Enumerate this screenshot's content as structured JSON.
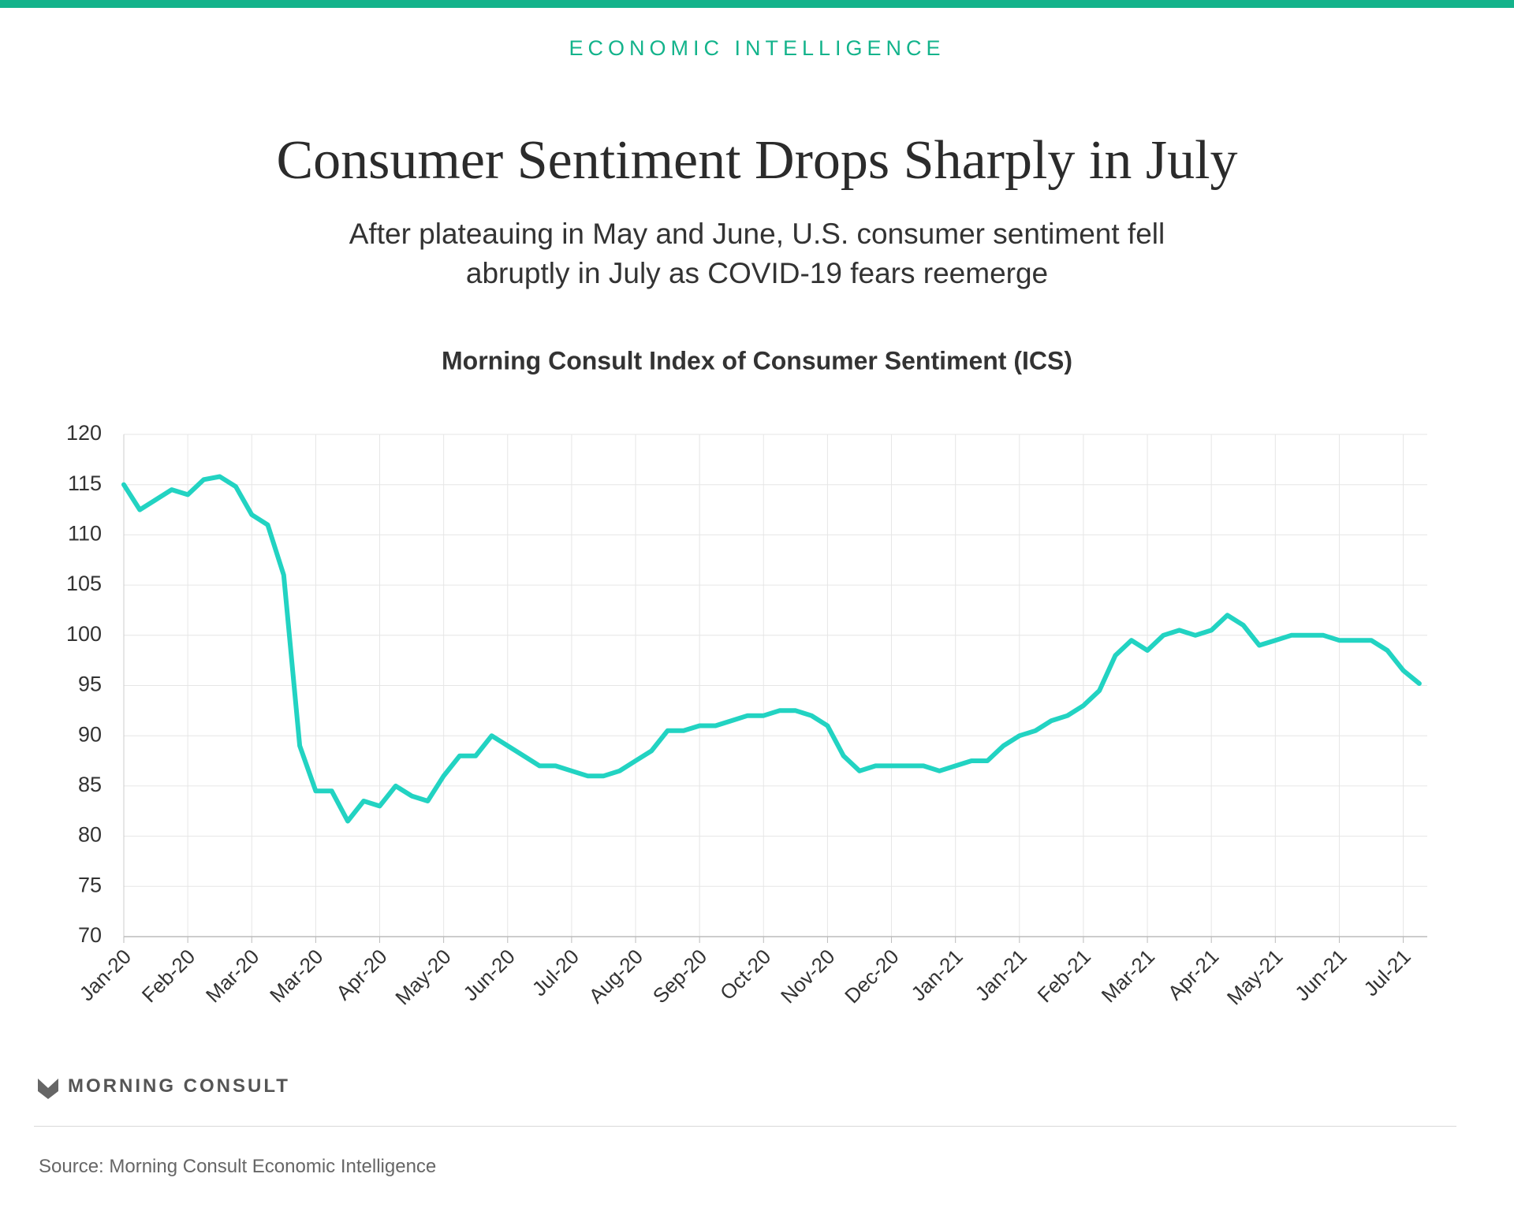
{
  "header": {
    "kicker": "ECONOMIC INTELLIGENCE"
  },
  "chart_data": {
    "type": "line",
    "title": "Consumer Sentiment Drops Sharply in July",
    "subtitle": "After plateauing in May and June, U.S. consumer sentiment fell abruptly in July as COVID-19 fears reemerge",
    "plot_title": "Morning Consult Index of Consumer Sentiment (ICS)",
    "categories": [
      "Jan-20",
      null,
      null,
      null,
      "Feb-20",
      null,
      null,
      null,
      "Mar-20",
      null,
      null,
      null,
      "Mar-20",
      null,
      null,
      null,
      "Apr-20",
      null,
      null,
      null,
      "May-20",
      null,
      null,
      null,
      "Jun-20",
      null,
      null,
      null,
      "Jul-20",
      null,
      null,
      null,
      "Aug-20",
      null,
      null,
      null,
      "Sep-20",
      null,
      null,
      null,
      "Oct-20",
      null,
      null,
      null,
      "Nov-20",
      null,
      null,
      null,
      "Dec-20",
      null,
      null,
      null,
      "Jan-21",
      null,
      null,
      null,
      "Jan-21",
      null,
      null,
      null,
      "Feb-21",
      null,
      null,
      null,
      "Mar-21",
      null,
      null,
      null,
      "Apr-21",
      null,
      null,
      null,
      "May-21",
      null,
      null,
      null,
      "Jun-21",
      null,
      null,
      null,
      "Jul-21",
      null
    ],
    "series": [
      {
        "name": "ICS",
        "color": "#22d3c2",
        "values": [
          115,
          112.5,
          113.5,
          114.5,
          114,
          115.5,
          115.8,
          114.8,
          112,
          111,
          106,
          89,
          84.5,
          84.5,
          81.5,
          83.5,
          83,
          85,
          84,
          83.5,
          86,
          88,
          88,
          90,
          89,
          88,
          87,
          87,
          86.5,
          86,
          86,
          86.5,
          87.5,
          88.5,
          90.5,
          90.5,
          91,
          91,
          91.5,
          92,
          92,
          92.5,
          92.5,
          92,
          91,
          88,
          86.5,
          87,
          87,
          87,
          87,
          86.5,
          87,
          87.5,
          87.5,
          89,
          90,
          90.5,
          91.5,
          92,
          93,
          94.5,
          98,
          99.5,
          98.5,
          100,
          100.5,
          100,
          100.5,
          102,
          101,
          99,
          99.5,
          100,
          100,
          100,
          99.5,
          99.5,
          99.5,
          98.5,
          96.5,
          95.2
        ]
      }
    ],
    "ylim": [
      70,
      120
    ],
    "yticks": [
      70,
      75,
      80,
      85,
      90,
      95,
      100,
      105,
      110,
      115,
      120
    ],
    "grid": true
  },
  "footer": {
    "brand": "MORNING CONSULT",
    "source": "Source: Morning Consult Economic Intelligence"
  }
}
